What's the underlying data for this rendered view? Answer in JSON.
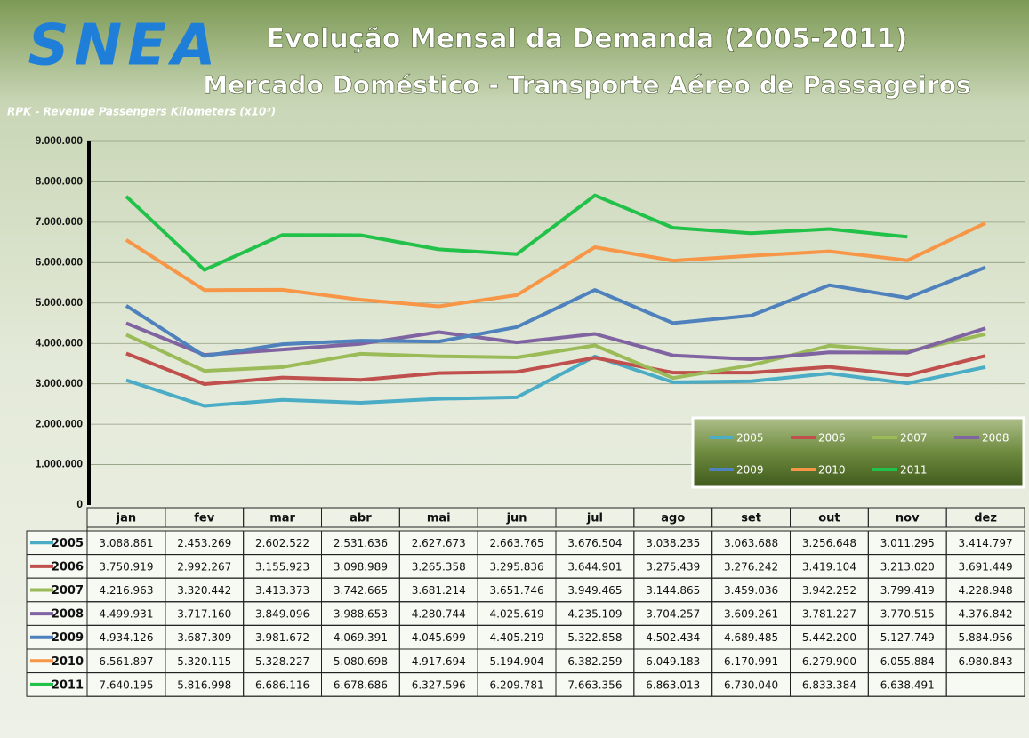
{
  "chart_data": {
    "type": "line",
    "logo": "SNEA",
    "title": "Evolução Mensal da Demanda (2005-2011)",
    "subtitle": "Mercado Doméstico - Transporte Aéreo de Passageiros",
    "y_label": "RPK - Revenue Passengers Kilometers  (x10³)",
    "categories": [
      "jan",
      "fev",
      "mar",
      "abr",
      "mai",
      "jun",
      "jul",
      "ago",
      "set",
      "out",
      "nov",
      "dez"
    ],
    "ylim": [
      0,
      9000000
    ],
    "yticks": [
      0,
      {
        "value": 1000000,
        "label": "1.000.000"
      },
      {
        "value": 2000000,
        "label": "2.000.000"
      },
      {
        "value": 3000000,
        "label": "3.000.000"
      },
      {
        "value": 4000000,
        "label": "4.000.000"
      },
      {
        "value": 5000000,
        "label": "5.000.000"
      },
      {
        "value": 6000000,
        "label": "6.000.000"
      },
      {
        "value": 7000000,
        "label": "7.000.000"
      },
      {
        "value": 8000000,
        "label": "8.000.000"
      },
      {
        "value": 9000000,
        "label": "9.000.000"
      }
    ],
    "grid": true,
    "legend": "lower right",
    "series": [
      {
        "name": "2005",
        "color": "#4bacc6",
        "values": [
          3088861,
          2453269,
          2602522,
          2531636,
          2627673,
          2663765,
          3676504,
          3038235,
          3063688,
          3256648,
          3011295,
          3414797
        ],
        "value_labels": [
          "3.088.861",
          "2.453.269",
          "2.602.522",
          "2.531.636",
          "2.627.673",
          "2.663.765",
          "3.676.504",
          "3.038.235",
          "3.063.688",
          "3.256.648",
          "3.011.295",
          "3.414.797"
        ]
      },
      {
        "name": "2006",
        "color": "#c0504d",
        "values": [
          3750919,
          2992267,
          3155923,
          3098989,
          3265358,
          3295836,
          3644901,
          3275439,
          3276242,
          3419104,
          3213020,
          3691449
        ],
        "value_labels": [
          "3.750.919",
          "2.992.267",
          "3.155.923",
          "3.098.989",
          "3.265.358",
          "3.295.836",
          "3.644.901",
          "3.275.439",
          "3.276.242",
          "3.419.104",
          "3.213.020",
          "3.691.449"
        ]
      },
      {
        "name": "2007",
        "color": "#9bbb59",
        "values": [
          4216963,
          3320442,
          3413373,
          3742665,
          3681214,
          3651746,
          3949465,
          3144865,
          3459036,
          3942252,
          3799419,
          4228948
        ],
        "value_labels": [
          "4.216.963",
          "3.320.442",
          "3.413.373",
          "3.742.665",
          "3.681.214",
          "3.651.746",
          "3.949.465",
          "3.144.865",
          "3.459.036",
          "3.942.252",
          "3.799.419",
          "4.228.948"
        ]
      },
      {
        "name": "2008",
        "color": "#8064a2",
        "values": [
          4499931,
          3717160,
          3849096,
          3988653,
          4280744,
          4025619,
          4235109,
          3704257,
          3609261,
          3781227,
          3770515,
          4376842
        ],
        "value_labels": [
          "4.499.931",
          "3.717.160",
          "3.849.096",
          "3.988.653",
          "4.280.744",
          "4.025.619",
          "4.235.109",
          "3.704.257",
          "3.609.261",
          "3.781.227",
          "3.770.515",
          "4.376.842"
        ]
      },
      {
        "name": "2009",
        "color": "#4f81bd",
        "values": [
          4934126,
          3687309,
          3981672,
          4069391,
          4045699,
          4405219,
          5322858,
          4502434,
          4689485,
          5442200,
          5127749,
          5884956
        ],
        "value_labels": [
          "4.934.126",
          "3.687.309",
          "3.981.672",
          "4.069.391",
          "4.045.699",
          "4.405.219",
          "5.322.858",
          "4.502.434",
          "4.689.485",
          "5.442.200",
          "5.127.749",
          "5.884.956"
        ]
      },
      {
        "name": "2010",
        "color": "#f79646",
        "values": [
          6561897,
          5320115,
          5328227,
          5080698,
          4917694,
          5194904,
          6382259,
          6049183,
          6170991,
          6279900,
          6055884,
          6980843
        ],
        "value_labels": [
          "6.561.897",
          "5.320.115",
          "5.328.227",
          "5.080.698",
          "4.917.694",
          "5.194.904",
          "6.382.259",
          "6.049.183",
          "6.170.991",
          "6.279.900",
          "6.055.884",
          "6.980.843"
        ]
      },
      {
        "name": "2011",
        "color": "#22c14a",
        "values": [
          7640195,
          5816998,
          6686116,
          6678686,
          6327596,
          6209781,
          7663356,
          6863013,
          6730040,
          6833384,
          6638491,
          null
        ],
        "value_labels": [
          "7.640.195",
          "5.816.998",
          "6.686.116",
          "6.678.686",
          "6.327.596",
          "6.209.781",
          "7.663.356",
          "6.863.013",
          "6.730.040",
          "6.833.384",
          "6.638.491",
          null
        ]
      }
    ]
  }
}
